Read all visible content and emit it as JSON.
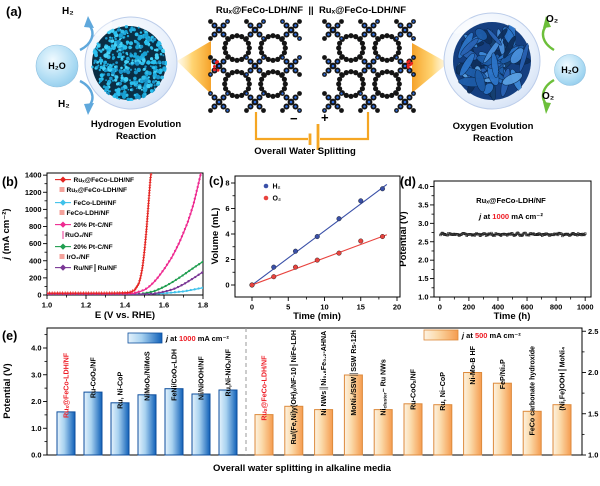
{
  "panel_a": {
    "label": "(a)",
    "title_left": "Ruₓ@FeCo-LDH/NF",
    "title_sep": "||",
    "title_right": "Ruₓ@FeCo-LDH/NF",
    "h2_top": "H₂",
    "h2_bottom": "H₂",
    "h2o_left": "H₂O",
    "o2_top": "O₂",
    "o2_bottom": "O₂",
    "h2o_right": "H₂O",
    "her_line1": "Hydrogen Evolution",
    "her_line2": "Reaction",
    "oer_line1": "Oxygen Evolution",
    "oer_line2": "Reaction",
    "ows_label": "Overall Water Splitting",
    "minus_label": "−",
    "plus_label": "+",
    "colors": {
      "wire": "#F5A623",
      "h2_arrow": "#5FA8DC",
      "o2_arrow": "#6CBF3A",
      "particle": "#29C0EF",
      "flower": "#2D74C8"
    }
  },
  "chart_data": [
    {
      "id": "b",
      "type": "line",
      "panel_label": "(b)",
      "xlabel": "E (V vs. RHE)",
      "ylabel_parts": [
        {
          "t": "j",
          "i": true
        },
        {
          "t": " (mA cm⁻²)"
        }
      ],
      "xlim": [
        1.0,
        1.8
      ],
      "ylim": [
        0,
        1425
      ],
      "xticks": [
        1.0,
        1.2,
        1.4,
        1.6,
        1.8
      ],
      "yticks": [
        0,
        200,
        400,
        600,
        800,
        1000,
        1200,
        1400
      ],
      "series": [
        {
          "name": "Ruₓ@FeCo-LDH/NF || Ruₓ@FeCo-LDH/NF",
          "color": "#E42522",
          "marker": "plus",
          "legend1": "Ruₓ@FeCo-LDH/NF",
          "legend2": "Ruₓ@FeCo-LDH/NF",
          "legend2_swatch": true,
          "x": [
            1.0,
            1.3,
            1.4,
            1.43,
            1.45,
            1.47,
            1.48,
            1.49,
            1.5,
            1.51,
            1.52,
            1.53,
            1.535
          ],
          "y": [
            22,
            22,
            26,
            35,
            60,
            130,
            210,
            330,
            520,
            760,
            1050,
            1350,
            1430
          ]
        },
        {
          "name": "FeCo-LDH/NF || FeCo-LDH/NF",
          "color": "#3EC1EA",
          "marker": "dot",
          "legend1": "FeCo-LDH/NF",
          "legend2": "FeCo-LDH/NF",
          "legend2_swatch": true,
          "x": [
            1.0,
            1.4,
            1.5,
            1.6,
            1.7,
            1.8
          ],
          "y": [
            8,
            8,
            12,
            20,
            42,
            85
          ]
        },
        {
          "name": "20% Pt-C/NF || RuO₂/NF",
          "color": "#EE2A90",
          "marker": "dot",
          "legend1": "20% Pt-C/NF",
          "legend2_parts": [
            {
              "t": "║",
              "c": "#EE2A90"
            },
            {
              "t": "RuO₂/NF"
            }
          ],
          "x": [
            1.0,
            1.4,
            1.45,
            1.5,
            1.53,
            1.56,
            1.6,
            1.64,
            1.68,
            1.72,
            1.75,
            1.78,
            1.79
          ],
          "y": [
            18,
            18,
            25,
            60,
            110,
            180,
            300,
            440,
            620,
            840,
            1050,
            1330,
            1430
          ]
        },
        {
          "name": "20% Pt-C/NF || IrO₂/NF",
          "color": "#209E50",
          "marker": "dot",
          "legend1": "20% Pt-C/NF",
          "legend2": "IrO₂/NF",
          "legend2_swatch": true,
          "x": [
            1.0,
            1.45,
            1.5,
            1.55,
            1.6,
            1.65,
            1.7,
            1.75,
            1.8
          ],
          "y": [
            12,
            12,
            20,
            45,
            95,
            160,
            235,
            315,
            390
          ]
        },
        {
          "name": "Ru/NF || Ru/NF",
          "color": "#7A3795",
          "marker": "dot",
          "legend1": "Ru/NF║Ru/NF",
          "x": [
            1.0,
            1.5,
            1.55,
            1.6,
            1.65,
            1.7,
            1.75,
            1.8
          ],
          "y": [
            10,
            10,
            18,
            38,
            70,
            125,
            195,
            270
          ]
        }
      ]
    },
    {
      "id": "c",
      "type": "scatter-line",
      "panel_label": "(c)",
      "xlabel": "Time (min)",
      "ylabel": "Volume (mL)",
      "xticks": [
        0,
        5,
        10,
        15,
        20
      ],
      "yticks": [
        0,
        2,
        4,
        6,
        8
      ],
      "series": [
        {
          "name": "H₂",
          "color": "#3A50A8",
          "x": [
            0,
            3,
            6,
            9,
            12,
            15,
            18
          ],
          "y": [
            0,
            1.4,
            2.65,
            3.8,
            5.2,
            6.6,
            7.55
          ],
          "fit_slope": 0.424
        },
        {
          "name": "O₂",
          "color": "#E8433E",
          "x": [
            0,
            3,
            6,
            9,
            12,
            15,
            18
          ],
          "y": [
            0,
            0.65,
            1.4,
            1.95,
            2.5,
            3.45,
            3.8
          ],
          "fit_slope": 0.212
        }
      ]
    },
    {
      "id": "d",
      "type": "scatter",
      "panel_label": "(d)",
      "xlabel": "Time (h)",
      "ylabel": "Potential (V)",
      "xticks": [
        0,
        200,
        400,
        600,
        800,
        1000
      ],
      "yticks": [
        1.0,
        1.5,
        2.0,
        2.5,
        3.0,
        3.5,
        4.0
      ],
      "baseline": 2.7,
      "n_points": 166,
      "x_end": 1000,
      "ann1": "Ruₓ@FeCo-LDH/NF",
      "ann2_parts": [
        {
          "t": "j",
          "i": true
        },
        {
          "t": " at "
        },
        {
          "t": "1000",
          "c": "#EE1C25"
        },
        {
          "t": " mA cm⁻²"
        }
      ]
    },
    {
      "id": "e",
      "type": "bar",
      "panel_label": "(e)",
      "xlabel": "Overall water splitting in alkaline media",
      "ylabel": "Potential (V)",
      "left_ticks": [
        0.0,
        1.0,
        2.0,
        3.0,
        4.0
      ],
      "left_max": 4.75,
      "right_ticks": [
        1.0,
        1.5,
        2.0,
        2.5
      ],
      "right_min": 1.0,
      "right_max": 2.54,
      "groups": [
        {
          "legend_parts": [
            {
              "t": "j",
              "i": true
            },
            {
              "t": " at "
            },
            {
              "t": "1000",
              "c": "#EE1C25"
            },
            {
              "t": " mA cm⁻²"
            }
          ],
          "fill_light": "#E4F2FC",
          "fill_mid": "#A8D2F0",
          "fill_dark": "#1060B8",
          "border": "#0D4E9C",
          "bars": [
            {
              "label": "Ruₓ@FeCo-LDH/NF",
              "value": 1.61,
              "color": "#EE1C25"
            },
            {
              "label": "Ru-CoOₓ/NF",
              "value": 2.35
            },
            {
              "label": "Ru, Ni-CoP",
              "value": 1.95
            },
            {
              "label": "NiMoOₓ/NiMoS",
              "value": 2.25
            },
            {
              "label": "FeNi/CoOₓ-LDH",
              "value": 2.48
            },
            {
              "label": "Ni/NiOOH/NF",
              "value": 2.28
            },
            {
              "label": "Ru,Ni-NiOₓ/NF",
              "value": 2.43
            }
          ]
        },
        {
          "legend_parts": [
            {
              "t": "j",
              "i": true
            },
            {
              "t": " at "
            },
            {
              "t": "500",
              "c": "#EE1C25"
            },
            {
              "t": " mA cm⁻²"
            }
          ],
          "fill_light": "#FDF3E3",
          "fill_mid": "#FBD9A8",
          "fill_dark": "#F59B4E",
          "border": "#DD8A3C",
          "bars": [
            {
              "label": "Ruₓ@FeCo-LDH/NF",
              "value": 1.49,
              "color": "#EE1C25"
            },
            {
              "label": "Ru/(Fe,Ni)y(OH)ₓ/NF-10║NiFe-LDH",
              "value": 1.59
            },
            {
              "label": "Ni NWs║Ni₀.₈Fe₀.₂-AHNA",
              "value": 1.55
            },
            {
              "label": "MoNi₄/SSW║SSW Rs-12h",
              "value": 1.97
            },
            {
              "label_parts": [
                {
                  "t": "Ni"
                },
                {
                  "t": "cluster",
                  "sub": true
                },
                {
                  "t": "– Ru NWs"
                }
              ],
              "value": 1.55
            },
            {
              "label": "Ru-CoOₓ/NF",
              "value": 1.62
            },
            {
              "label": "Ru, Ni–CoP",
              "value": 1.61
            },
            {
              "label": "Ni-Mo-B HF",
              "value": 2.0
            },
            {
              "label": "FeP/Ni₂P",
              "value": 1.87
            },
            {
              "label": "FeCo carbonate hydroxide",
              "value": 1.53
            },
            {
              "label": "(Ni,Fe)OOH║MoNi₄",
              "value": 1.61
            }
          ]
        }
      ]
    }
  ]
}
